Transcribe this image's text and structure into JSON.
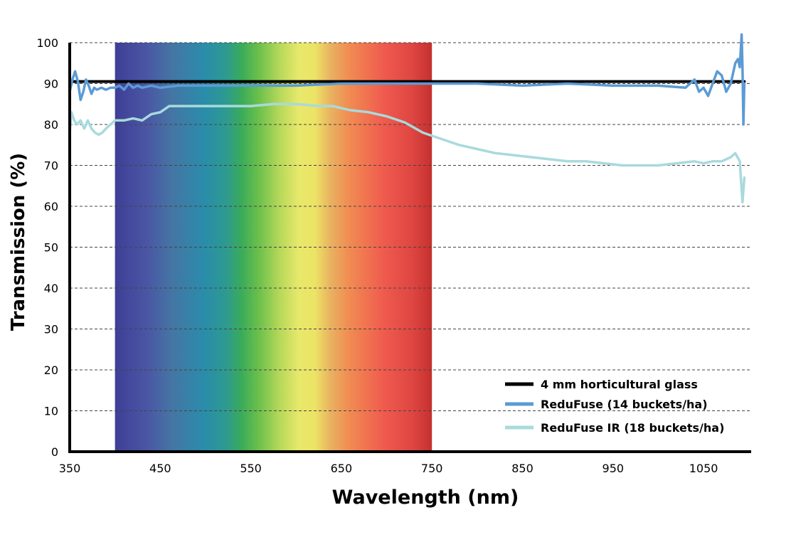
{
  "chart_data": {
    "type": "line",
    "xlabel": "Wavelength (nm)",
    "ylabel": "Transmission (%)",
    "xlim": [
      350,
      1095
    ],
    "ylim": [
      0,
      100
    ],
    "x_ticks": [
      350,
      450,
      550,
      650,
      750,
      850,
      950,
      1050
    ],
    "y_ticks": [
      0,
      10,
      20,
      30,
      40,
      50,
      60,
      70,
      80,
      90,
      100
    ],
    "grid": "horizontal dashed",
    "legend_position": "bottom-right",
    "visible_spectrum_band": {
      "from": 400,
      "to": 750
    },
    "series": [
      {
        "name": "4 mm horticultural glass",
        "color": "#000000",
        "x": [
          350,
          1095
        ],
        "y": [
          90.5,
          90.5
        ]
      },
      {
        "name": "ReduFuse (14 buckets/ha)",
        "color": "#5b9bd5",
        "x": [
          350,
          353,
          356,
          359,
          362,
          365,
          368,
          371,
          374,
          377,
          380,
          385,
          390,
          395,
          400,
          405,
          410,
          415,
          420,
          425,
          430,
          440,
          450,
          470,
          500,
          550,
          600,
          650,
          700,
          750,
          800,
          850,
          900,
          950,
          1000,
          1030,
          1040,
          1045,
          1050,
          1055,
          1060,
          1065,
          1070,
          1075,
          1080,
          1085,
          1088,
          1090,
          1092,
          1093,
          1094,
          1095
        ],
        "y": [
          88,
          91,
          93,
          90.5,
          86,
          88,
          91,
          89.5,
          87.5,
          89,
          88.5,
          89,
          88.5,
          89,
          89,
          89.5,
          88.5,
          90,
          89,
          89.5,
          89,
          89.5,
          89,
          89.5,
          89.5,
          89.5,
          89.5,
          90,
          90,
          90,
          90,
          89.5,
          90,
          89.5,
          89.5,
          89,
          91,
          88,
          89,
          87,
          90,
          93,
          92,
          88,
          90,
          95,
          96,
          94,
          102,
          94,
          80,
          90
        ]
      },
      {
        "name": "ReduFuse IR (18 buckets/ha)",
        "color": "#a8dadc",
        "x": [
          350,
          352,
          355,
          358,
          362,
          366,
          370,
          374,
          378,
          382,
          386,
          390,
          395,
          400,
          410,
          420,
          430,
          440,
          450,
          460,
          475,
          500,
          525,
          550,
          575,
          600,
          625,
          640,
          660,
          680,
          700,
          720,
          740,
          760,
          780,
          800,
          820,
          840,
          860,
          880,
          900,
          920,
          940,
          960,
          980,
          1000,
          1020,
          1040,
          1050,
          1060,
          1070,
          1080,
          1085,
          1090,
          1093,
          1095
        ],
        "y": [
          78,
          83,
          81,
          80,
          81,
          79,
          81,
          79,
          78,
          77.5,
          78,
          79,
          80,
          81,
          81,
          81.5,
          81,
          82.5,
          83,
          84.5,
          84.5,
          84.5,
          84.5,
          84.5,
          85,
          85,
          84.5,
          84.5,
          83.5,
          83,
          82,
          80.5,
          78,
          76.5,
          75,
          74,
          73,
          72.5,
          72,
          71.5,
          71,
          71,
          70.5,
          70,
          70,
          70,
          70.5,
          71,
          70.5,
          71,
          71,
          72,
          73,
          71,
          61,
          67
        ]
      }
    ]
  }
}
